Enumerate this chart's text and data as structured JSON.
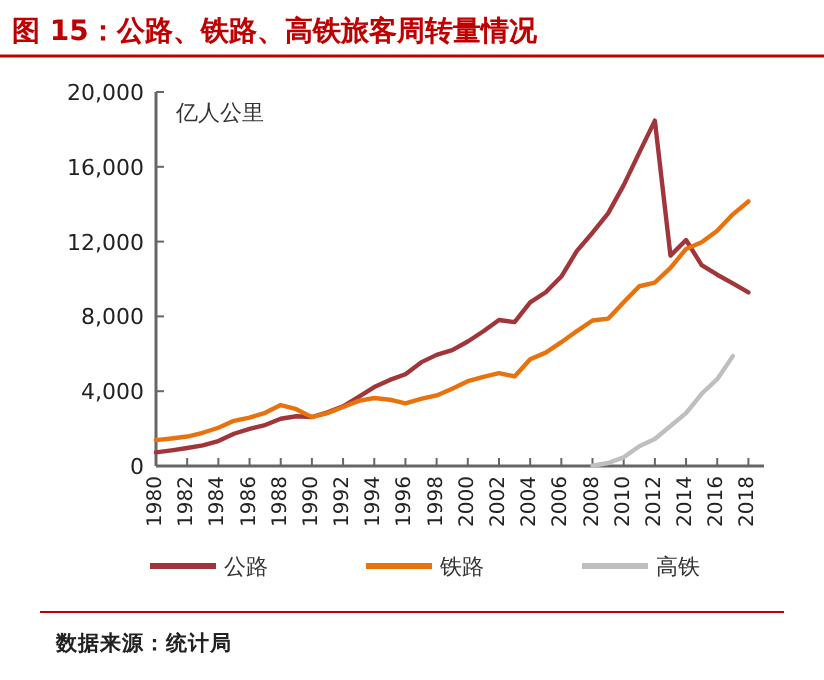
{
  "chart_data": {
    "type": "line",
    "title": "图 15：公路、铁路、高铁旅客周转量情况",
    "ylabel": "亿人公里",
    "annotations": [
      "数据来源：统计局"
    ],
    "x": [
      1980,
      1981,
      1982,
      1983,
      1984,
      1985,
      1986,
      1987,
      1988,
      1989,
      1990,
      1991,
      1992,
      1993,
      1994,
      1995,
      1996,
      1997,
      1998,
      1999,
      2000,
      2001,
      2002,
      2003,
      2004,
      2005,
      2006,
      2007,
      2008,
      2009,
      2010,
      2011,
      2012,
      2013,
      2014,
      2015,
      2016,
      2017,
      2018
    ],
    "series": [
      {
        "name": "公路",
        "color": "#a0353a",
        "values": [
          730,
          839,
          964,
          1106,
          1336,
          1725,
          1981,
          2190,
          2528,
          2662,
          2620,
          2872,
          3193,
          3701,
          4221,
          4603,
          4909,
          5541,
          5943,
          6199,
          6657,
          7207,
          7806,
          7696,
          8748,
          9292,
          10131,
          11507,
          12476,
          13511,
          15021,
          16760,
          18468,
          11251,
          12084,
          10743,
          10229,
          9765,
          9280
        ]
      },
      {
        "name": "铁路",
        "color": "#e8720c",
        "values": [
          1383,
          1473,
          1575,
          1777,
          2047,
          2416,
          2587,
          2844,
          3260,
          3037,
          2613,
          2828,
          3152,
          3483,
          3636,
          3546,
          3347,
          3585,
          3773,
          4136,
          4533,
          4767,
          4969,
          4789,
          5712,
          6062,
          6622,
          7216,
          7779,
          7879,
          8762,
          9612,
          9812,
          10596,
          11605,
          11961,
          12579,
          13457,
          14147
        ]
      },
      {
        "name": "高铁",
        "color": "#bfbfbf",
        "values": [
          null,
          null,
          null,
          null,
          null,
          null,
          null,
          null,
          null,
          null,
          null,
          null,
          null,
          null,
          null,
          null,
          null,
          null,
          null,
          null,
          null,
          null,
          null,
          null,
          null,
          null,
          null,
          null,
          15,
          162,
          464,
          1058,
          1446,
          2141,
          2825,
          3863,
          4641,
          5876,
          null
        ]
      }
    ],
    "xlim": [
      1980,
      2019
    ],
    "xticks": [
      1980,
      1982,
      1984,
      1986,
      1988,
      1990,
      1992,
      1994,
      1996,
      1998,
      2000,
      2002,
      2004,
      2006,
      2008,
      2010,
      2012,
      2014,
      2016,
      2018
    ],
    "ylim": [
      0,
      20000
    ],
    "yticks": [
      {
        "value": 0,
        "label": "0"
      },
      {
        "value": 4000,
        "label": "4,000"
      },
      {
        "value": 8000,
        "label": "8,000"
      },
      {
        "value": 12000,
        "label": "12,000"
      },
      {
        "value": 16000,
        "label": "16,000"
      },
      {
        "value": 20000,
        "label": "20,000"
      }
    ],
    "legend": "bottom",
    "marker": "none",
    "line_style": "solid"
  }
}
